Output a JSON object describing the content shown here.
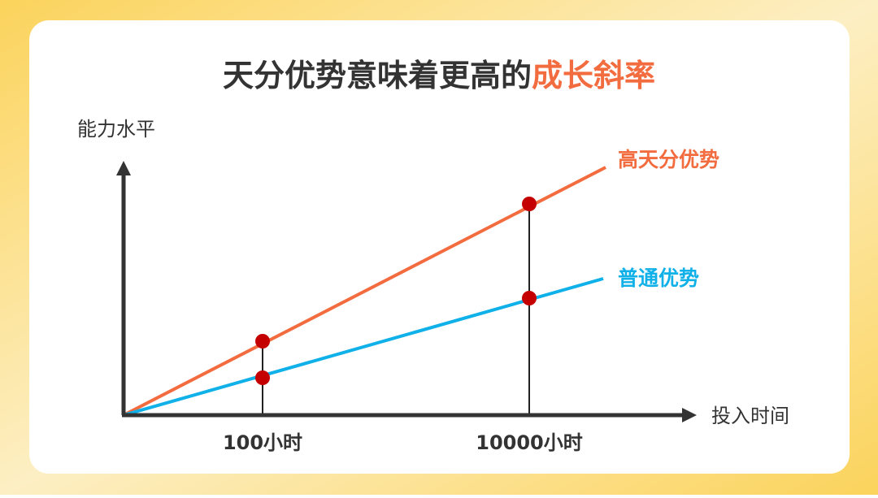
{
  "title": {
    "main": "天分优势意味着更高的",
    "highlight": "成长斜率"
  },
  "axes": {
    "y_label": "能力水平",
    "x_label": "投入时间"
  },
  "lines": [
    {
      "label": "高天分优势"
    },
    {
      "label": "普通优势"
    }
  ],
  "x_markers": [
    {
      "label": "100小时"
    },
    {
      "label": "10000小时"
    }
  ]
}
